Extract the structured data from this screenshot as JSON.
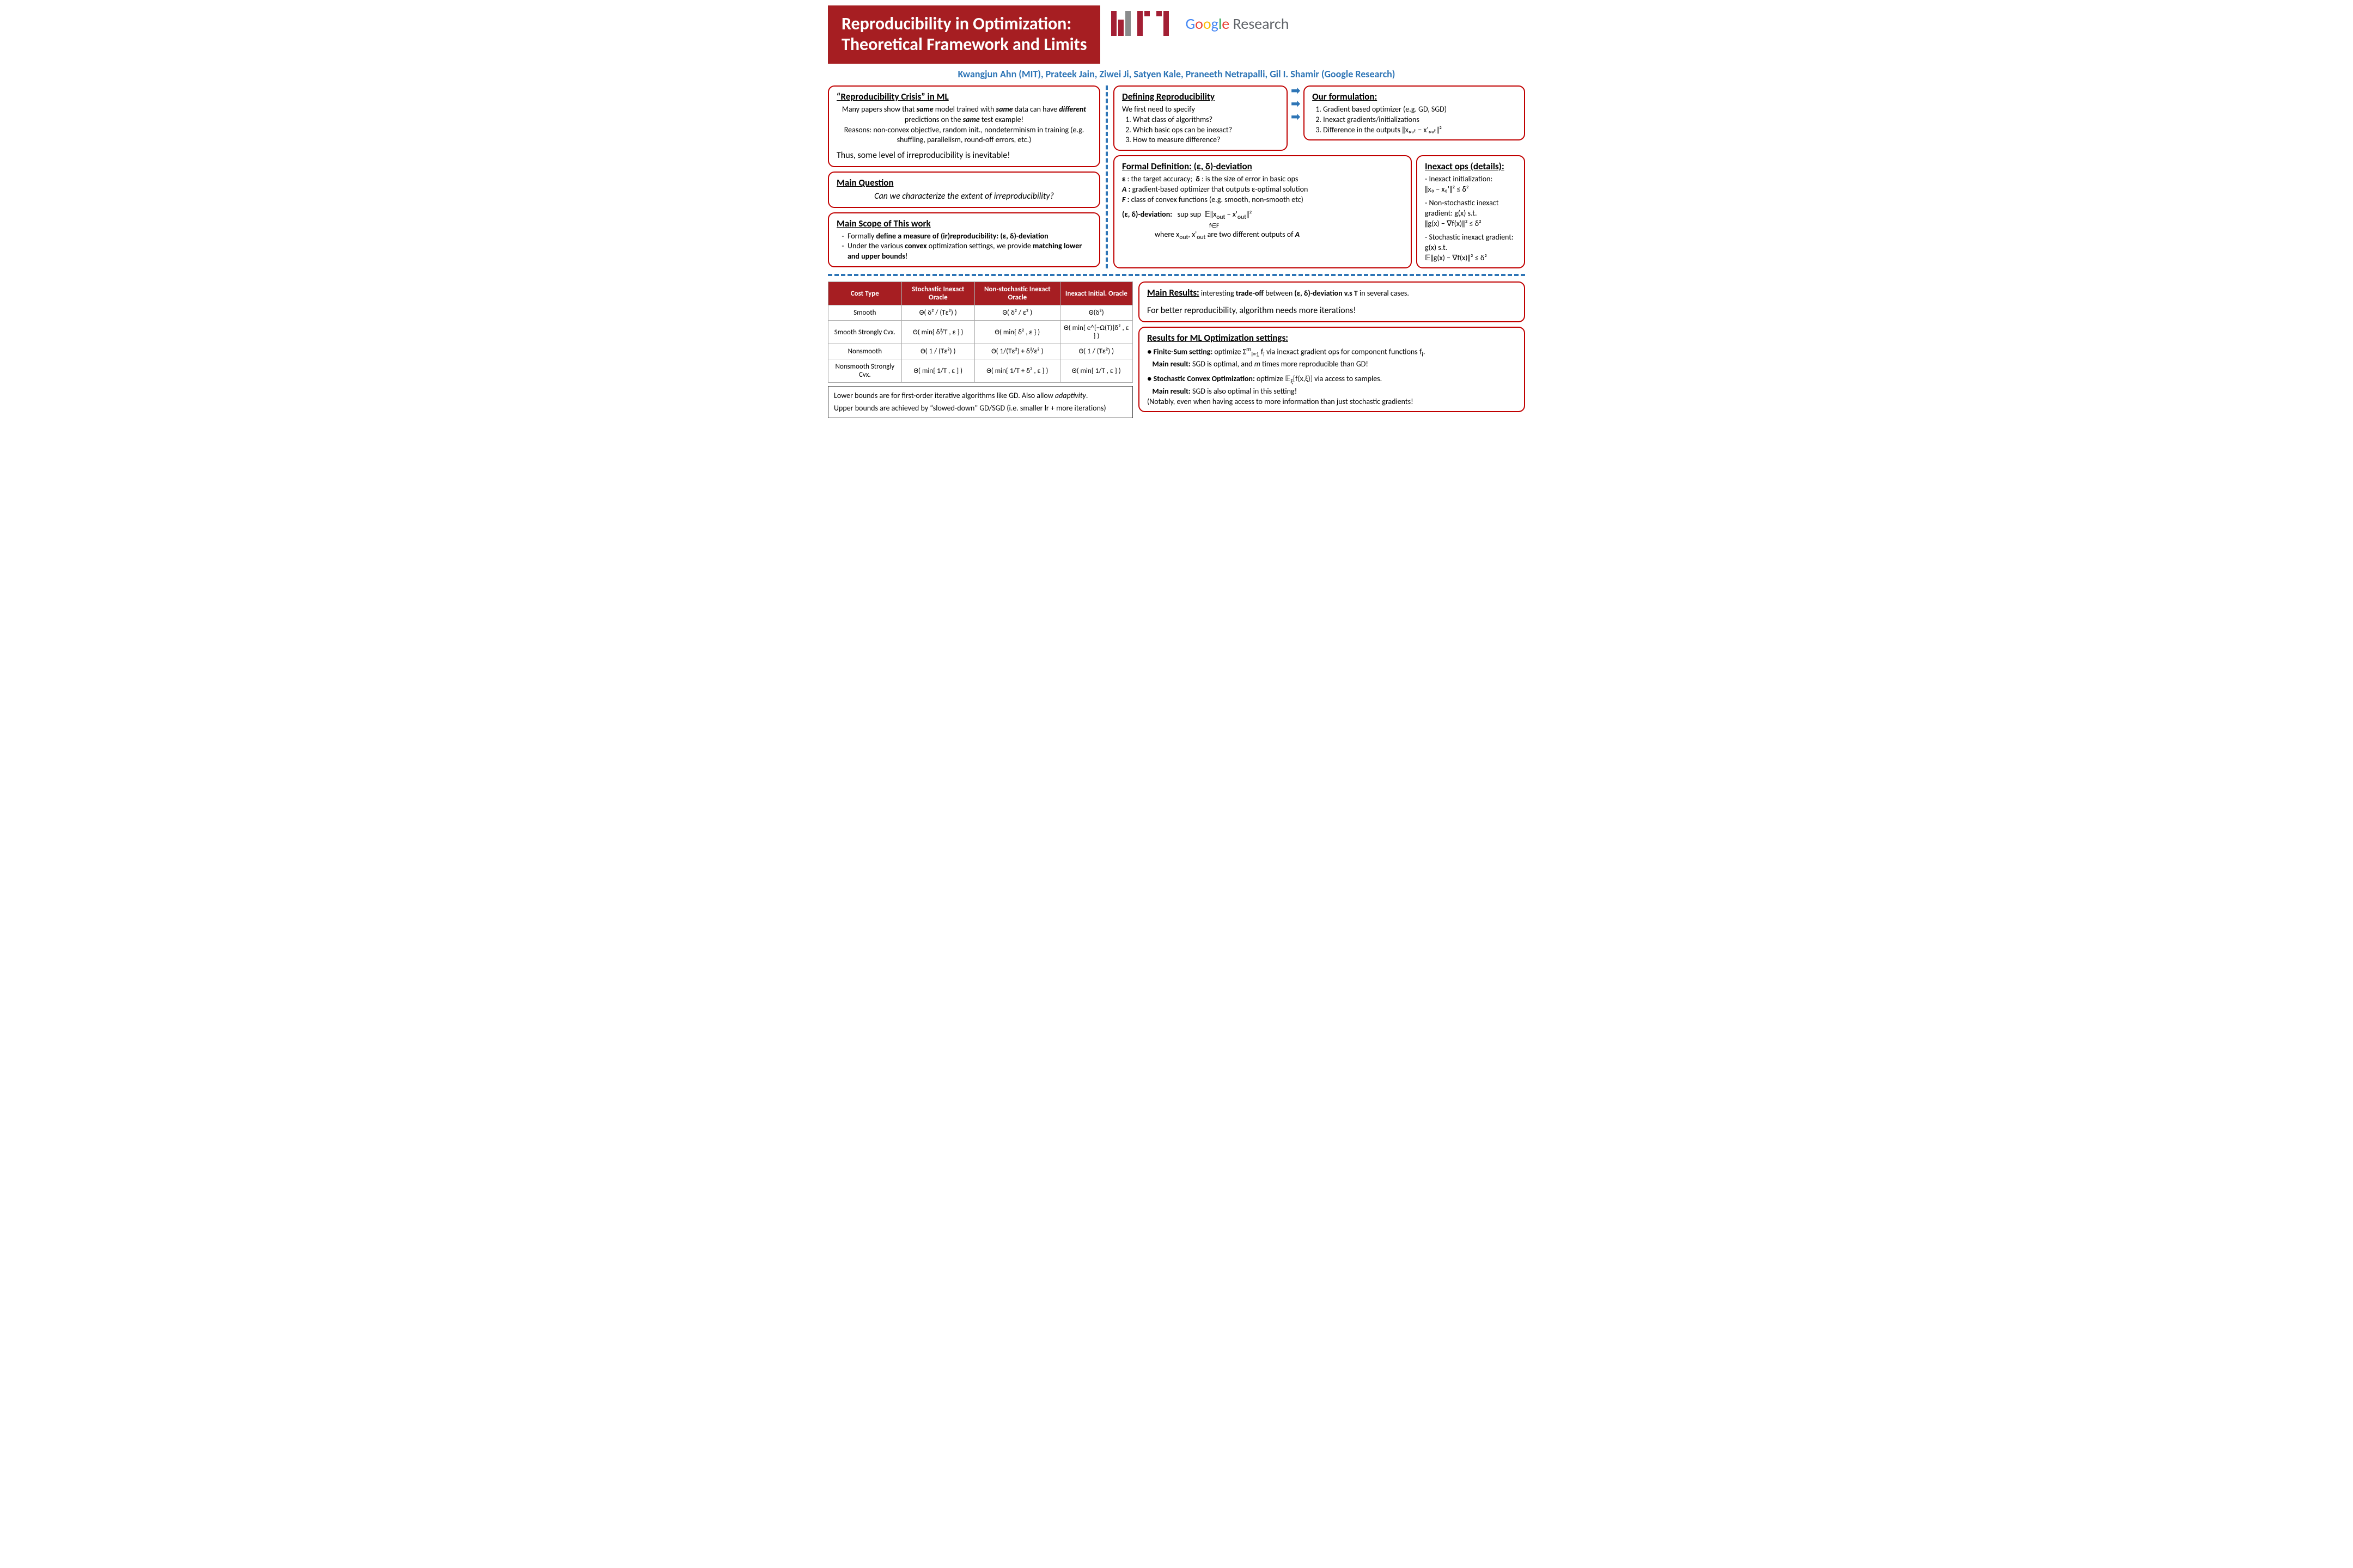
{
  "colors": {
    "brand_red": "#a61e22",
    "accent_blue": "#2e75b6",
    "border_red": "#c00000"
  },
  "title_line1": "Reproducibility in Optimization:",
  "title_line2": "Theoretical Framework and Limits",
  "authors": "Kwangjun Ahn (MIT), Prateek Jain, Ziwei Ji, Satyen Kale, Praneeth Netrapalli, Gil I. Shamir (Google Research)",
  "logos": {
    "mit": "MIT",
    "google": "Google",
    "google_research": "Research"
  },
  "crisis": {
    "heading": "“Reproducibility Crisis” in ML",
    "p1": "Many papers show that same model trained with same data can have different predictions on the same test example!",
    "p2": "Reasons: non-convex objective, random init., nondeterminism in training (e.g. shuffling, parallelism, round-off errors, etc.)",
    "p3": "Thus, some level of irreproducibility is inevitable!"
  },
  "question": {
    "heading": "Main Question",
    "text": "Can we characterize the extent of irreproducibility?"
  },
  "scope": {
    "heading": "Main Scope of This work",
    "i1": "Formally define a measure of (ir)reproducibility: (ε, δ)-deviation",
    "i2": "Under the various convex optimization settings, we provide matching lower and upper bounds!"
  },
  "defining": {
    "heading": "Defining Reproducibility",
    "lead": "We first need to specify",
    "i1": "What class of algorithms?",
    "i2": "Which basic ops can be inexact?",
    "i3": "How to measure difference?"
  },
  "formulation": {
    "heading": "Our formulation:",
    "i1": "Gradient based optimizer (e.g. GD, SGD)",
    "i2": "Inexact gradients/initializations",
    "i3": "Difference in the outputs ‖xₒᵤₜ − x'ₒᵤₜ‖²"
  },
  "formal": {
    "heading": "Formal Definition:  (ε, δ)-deviation",
    "l1": "ε : the target accuracy;  δ : is the size of error in basic ops",
    "l2": "A : gradient-based optimizer that outputs ε-optimal solution",
    "l3": "F : class of convex functions (e.g. smooth, non-smooth etc)",
    "l4": "(ε, δ)-deviation:   sup sup  𝔼‖xₒᵤₜ − x'ₒᵤₜ‖²",
    "l4sub": "f∈F",
    "l5": "where xₒᵤₜ, x'ₒᵤₜ are two different outputs of A"
  },
  "inexact": {
    "heading": "Inexact ops (details):",
    "a1": "- Inexact initialization:",
    "a1f": "‖x₀ − x₀'‖² ≤ δ²",
    "b1": "- Non-stochastic inexact gradient: g(x) s.t.",
    "b1f": "‖g(x) − ∇f(x)‖² ≤ δ²",
    "c1": "- Stochastic inexact gradient: g(x) s.t.",
    "c1f": "𝔼‖g(x) − ∇f(x)‖² ≤ δ²"
  },
  "table": {
    "headers": [
      "Cost Type",
      "Stochastic Inexact Oracle",
      "Non-stochastic Inexact Oracle",
      "Inexact Initial. Oracle"
    ],
    "rows": [
      [
        "Smooth",
        "Θ( δ² / (Tε²) )",
        "Θ( δ² / ε² )",
        "Θ(δ²)"
      ],
      [
        "Smooth Strongly Cvx.",
        "Θ( min{ δ²/T , ε } )",
        "Θ( min{ δ² , ε } )",
        "Θ( min{ e^{−Ω(T)}δ² , ε } )"
      ],
      [
        "Nonsmooth",
        "Θ( 1 / (Tε²) )",
        "Θ( 1/(Tε²) + δ²/ε² )",
        "Θ( 1 / (Tε²) )"
      ],
      [
        "Nonsmooth Strongly Cvx.",
        "Θ( min{ 1/T , ε } )",
        "Θ( min{ 1/T + δ² , ε } )",
        "Θ( min{ 1/T , ε } )"
      ]
    ]
  },
  "table_note1": "Lower bounds are for first-order iterative algorithms like GD. Also allow adaptivity.",
  "table_note2": "Upper bounds are achieved by “slowed-down” GD/SGD (i.e. smaller lr + more iterations)",
  "main_results": {
    "heading": "Main Results:",
    "t1": " interesting trade-off between (ε, δ)-deviation v.s T in several cases.",
    "t2": "For better reproducibility, algorithm needs more iterations!"
  },
  "ml_results": {
    "heading": "Results for ML Optimization settings:",
    "a1": "● Finite-Sum setting: optimize Σₘᵢ₌₁ fᵢ via inexact gradient ops for component functions fᵢ.",
    "a2": "   Main result: SGD is optimal, and m times more reproducible than GD!",
    "b1": "● Stochastic Convex Optimization: optimize 𝔼ξ[f(x,ξ)] via access to samples.",
    "b2": "   Main result: SGD is also optimal in this setting!",
    "b3": "   (Notably, even when having access to more information than just stochastic gradients!"
  }
}
